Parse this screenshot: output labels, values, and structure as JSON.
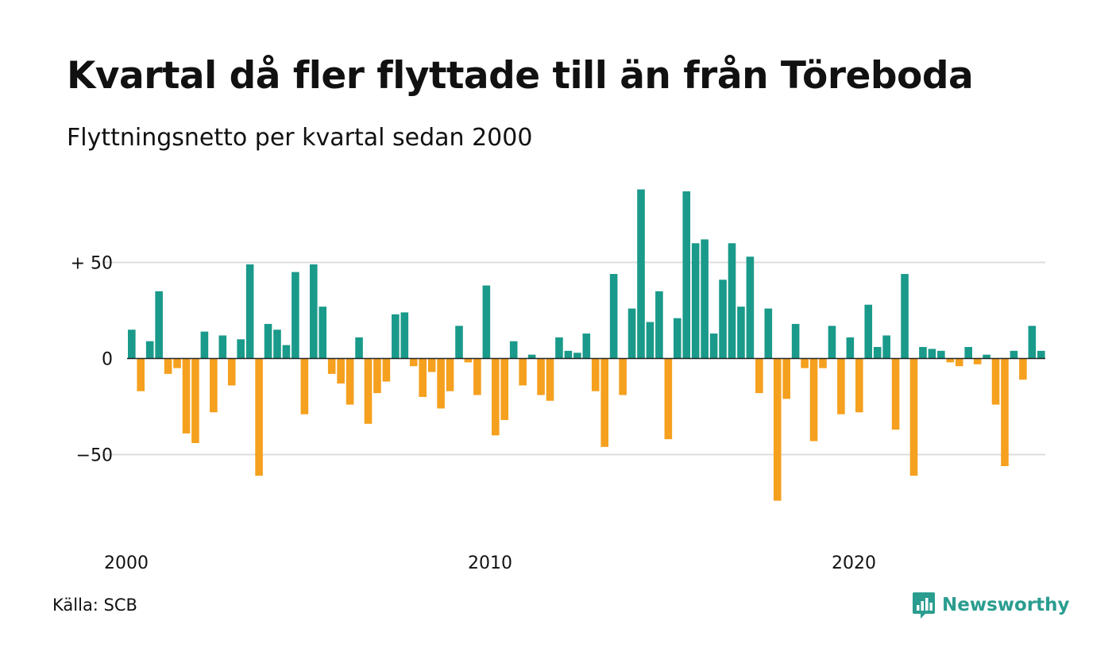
{
  "header": {
    "title": "Kvartal då fler flyttade till än från Töreboda",
    "subtitle": "Flyttningsnetto per kvartal sedan 2000"
  },
  "footer": {
    "source": "Källa: SCB",
    "brand": "Newsworthy"
  },
  "colors": {
    "positive": "#1a9a8a",
    "negative": "#f5a01e",
    "grid": "#dddddd",
    "baseline": "#222222",
    "brand": "#2a9d8f"
  },
  "chart_data": {
    "type": "bar",
    "x_start": "2000 Q1",
    "y_ticks": [
      50,
      0,
      -50
    ],
    "y_tick_labels": [
      "+ 50",
      "0",
      "−50"
    ],
    "x_ticks": [
      "2000",
      "2010",
      "2020"
    ],
    "ylim": [
      -80,
      90
    ],
    "grid": true,
    "legend": "none",
    "values": [
      15,
      -17,
      9,
      35,
      -8,
      -5,
      -39,
      -44,
      14,
      -28,
      12,
      -14,
      10,
      49,
      -61,
      18,
      15,
      7,
      45,
      -29,
      49,
      27,
      -8,
      -13,
      -24,
      11,
      -34,
      -18,
      -12,
      23,
      24,
      -4,
      -20,
      -7,
      -26,
      -17,
      17,
      -2,
      -19,
      38,
      -40,
      -32,
      9,
      -14,
      2,
      -19,
      -22,
      11,
      4,
      3,
      13,
      -17,
      -46,
      44,
      -19,
      26,
      88,
      19,
      35,
      -42,
      21,
      87,
      60,
      62,
      13,
      41,
      60,
      27,
      53,
      -18,
      26,
      -74,
      -21,
      18,
      -5,
      -43,
      -5,
      17,
      -29,
      11,
      -28,
      28,
      6,
      12,
      -37,
      44,
      -61,
      6,
      5,
      4,
      -2,
      -4,
      6,
      -3,
      2,
      -24,
      -56,
      4,
      -11,
      17,
      4
    ]
  }
}
